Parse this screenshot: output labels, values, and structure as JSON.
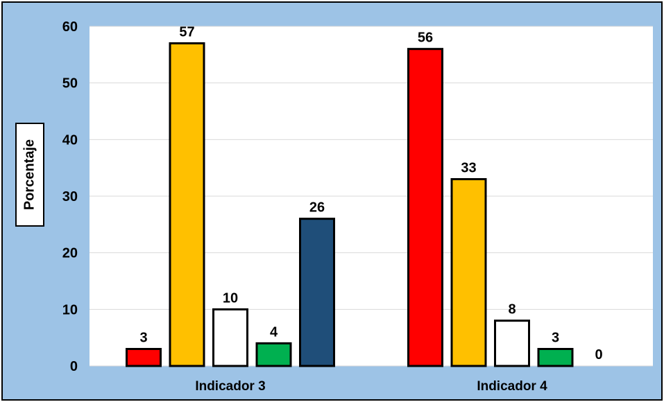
{
  "chart_data": {
    "type": "bar",
    "ylabel": "Porcentaje",
    "xlabel": "",
    "ylim": [
      0,
      60
    ],
    "yticks": [
      "0",
      "10",
      "20",
      "30",
      "40",
      "50",
      "60"
    ],
    "grid": true,
    "categories": [
      "Indicador 3",
      "Indicador 4"
    ],
    "series": [
      {
        "color": "#ff0000",
        "values": [
          3,
          56
        ]
      },
      {
        "color": "#ffc000",
        "values": [
          57,
          33
        ]
      },
      {
        "color": "#ffffff",
        "values": [
          10,
          8
        ]
      },
      {
        "color": "#00b050",
        "values": [
          4,
          3
        ]
      },
      {
        "color": "#1f4e79",
        "values": [
          26,
          0
        ]
      }
    ]
  }
}
